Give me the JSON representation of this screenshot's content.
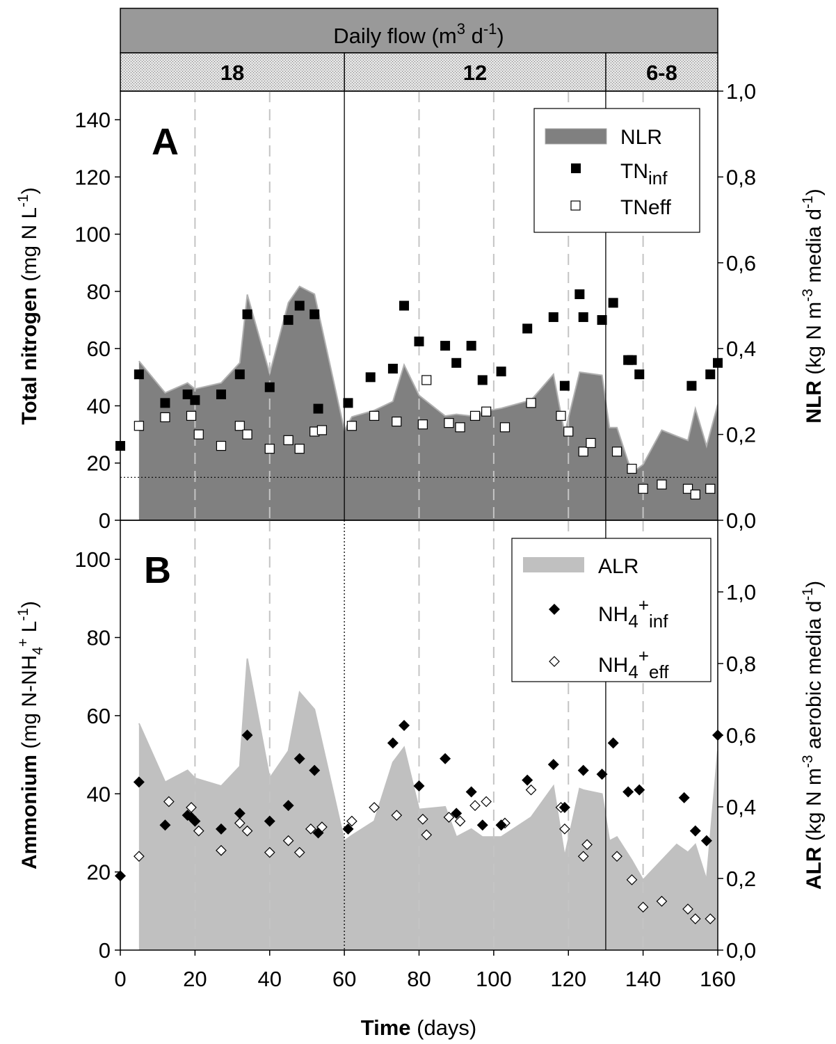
{
  "flow_header": {
    "title_main": "Daily flow (m",
    "title_sup1": "3",
    "title_mid": " d",
    "title_sup2": "-1",
    "title_end": ")",
    "periods": [
      {
        "label": "18",
        "x_start": 0,
        "x_end": 60
      },
      {
        "label": "12",
        "x_start": 60,
        "x_end": 130
      },
      {
        "label": "6-8",
        "x_start": 130,
        "x_end": 160
      }
    ],
    "header_bg": "#999999",
    "band_bg": "#dcdcdc"
  },
  "x_axis": {
    "label_bold": "Time",
    "label_rest": " (days)",
    "range": [
      0,
      160
    ],
    "ticks": [
      "0",
      "20",
      "40",
      "60",
      "80",
      "100",
      "120",
      "140",
      "160"
    ]
  },
  "chart_data": [
    {
      "type": "area",
      "panel_label": "A",
      "ylabel_left_bold": "Total nitrogen",
      "ylabel_left_rest": " (mg N L",
      "ylabel_left_sup": "-1",
      "ylabel_left_end": ")",
      "ylabel_right_bold": "NLR",
      "ylabel_right_rest": " (kg N m",
      "ylabel_right_sup": "-3",
      "ylabel_right_mid": " media d",
      "ylabel_right_sup2": "-1",
      "ylabel_right_end": ")",
      "ylim_left": [
        0,
        150
      ],
      "left_ticks": [
        "0",
        "20",
        "40",
        "60",
        "80",
        "100",
        "120",
        "140"
      ],
      "ylim_right": [
        0,
        1.0
      ],
      "right_ticks": [
        "0,0",
        "0,2",
        "0,4",
        "0,6",
        "0,8",
        "1,0"
      ],
      "reference_line_y": 15,
      "legend": {
        "position": "top-right",
        "area": "NLR",
        "inf_base": "TN",
        "inf_sub": "inf",
        "eff": "TNeff"
      },
      "area_color": "#808080",
      "area_edge": "#b0b0b0",
      "area_series": {
        "name": "NLR",
        "x": [
          5,
          12,
          18,
          20,
          27,
          32,
          34,
          40,
          45,
          48,
          52,
          60,
          62,
          68,
          73,
          76,
          80,
          87,
          90,
          94,
          97,
          102,
          110,
          116,
          119,
          123,
          124,
          129,
          131,
          133,
          137,
          140,
          145,
          149,
          152,
          154,
          157,
          160
        ],
        "y": [
          0.371,
          0.297,
          0.32,
          0.306,
          0.32,
          0.367,
          0.526,
          0.342,
          0.507,
          0.545,
          0.527,
          0.21,
          0.241,
          0.256,
          0.277,
          0.362,
          0.291,
          0.243,
          0.247,
          0.243,
          0.253,
          0.261,
          0.28,
          0.34,
          0.202,
          0.345,
          0.344,
          0.338,
          0.216,
          0.216,
          0.11,
          0.13,
          0.21,
          0.196,
          0.186,
          0.26,
          0.173,
          0.27
        ]
      },
      "inf_series": {
        "name": "TNinf",
        "x": [
          0,
          5,
          12,
          18,
          20,
          27,
          32,
          34,
          40,
          45,
          48,
          52,
          53,
          61,
          67,
          73,
          76,
          80,
          87,
          90,
          94,
          97,
          102,
          109,
          116,
          119,
          123,
          124,
          129,
          132,
          136,
          137,
          139,
          153,
          158,
          160
        ],
        "y": [
          26,
          51,
          41,
          44,
          42,
          44,
          51,
          72,
          46.5,
          70,
          75,
          72,
          39,
          41,
          50,
          53,
          75,
          62.5,
          61,
          55,
          61,
          49,
          52,
          67,
          71,
          47,
          79,
          71,
          70,
          76,
          56,
          56,
          51,
          47,
          51,
          55
        ]
      },
      "eff_series": {
        "name": "TNeff",
        "x": [
          5,
          12,
          19,
          21,
          27,
          32,
          34,
          40,
          45,
          48,
          52,
          54,
          62,
          68,
          74,
          81,
          82,
          88,
          91,
          95,
          98,
          103,
          110,
          118,
          120,
          124,
          126,
          133,
          137,
          140,
          145,
          152,
          154,
          158
        ],
        "y": [
          33,
          36,
          36.5,
          30,
          26,
          33,
          30,
          25,
          28,
          25,
          31,
          31.5,
          33,
          36.5,
          34.5,
          33.5,
          49,
          34,
          32.5,
          36.5,
          38,
          32.5,
          41,
          36.5,
          31,
          24,
          27,
          24,
          18,
          11,
          12.5,
          11,
          9,
          11
        ]
      },
      "divider_days": [
        60,
        130
      ],
      "dashed_gridline_days": [
        20,
        40,
        80,
        100,
        120,
        140
      ]
    },
    {
      "type": "area",
      "panel_label": "B",
      "ylabel_left_bold": "Ammonium",
      "ylabel_left_rest": " (mg N-NH",
      "ylabel_left_sub": "4",
      "ylabel_left_sup": "+",
      "ylabel_left_mid": " L",
      "ylabel_left_sup2": "-1",
      "ylabel_left_end": ")",
      "ylabel_right_bold": "ALR",
      "ylabel_right_rest": " (kg N m",
      "ylabel_right_sup": "-3",
      "ylabel_right_mid": " aerobic media d",
      "ylabel_right_sup2": "-1",
      "ylabel_right_end": ")",
      "ylim_left": [
        0,
        110
      ],
      "left_ticks": [
        "0",
        "20",
        "40",
        "60",
        "80",
        "100"
      ],
      "ylim_right": [
        0,
        1.2
      ],
      "right_ticks": [
        "0,0",
        "0,2",
        "0,4",
        "0,6",
        "0,8",
        "1,0"
      ],
      "legend": {
        "position": "top-right",
        "area": "ALR",
        "inf_base": "NH",
        "inf_sub1": "4",
        "inf_sup": "+",
        "inf_sub2": "inf",
        "eff_base": "NH",
        "eff_sub1": "4",
        "eff_sup": "+",
        "eff_sub2": "eff"
      },
      "area_color": "#c0c0c0",
      "area_edge": "#c0c0c0",
      "area_series": {
        "name": "ALR",
        "x": [
          5,
          12,
          18,
          20,
          27,
          32,
          34,
          40,
          45,
          48,
          52,
          60,
          62,
          68,
          73,
          76,
          80,
          87,
          90,
          94,
          97,
          102,
          110,
          116,
          119,
          123,
          124,
          129,
          131,
          133,
          137,
          140,
          145,
          149,
          152,
          154,
          157,
          160
        ],
        "y": [
          0.633,
          0.469,
          0.502,
          0.48,
          0.458,
          0.513,
          0.814,
          0.48,
          0.556,
          0.72,
          0.672,
          0.305,
          0.32,
          0.36,
          0.524,
          0.566,
          0.393,
          0.4,
          0.316,
          0.338,
          0.316,
          0.316,
          0.371,
          0.458,
          0.262,
          0.451,
          0.447,
          0.436,
          0.305,
          0.316,
          0.251,
          0.196,
          0.251,
          0.295,
          0.273,
          0.295,
          0.196,
          0.556
        ]
      },
      "inf_series": {
        "name": "NH4+inf",
        "x": [
          0,
          5,
          12,
          18,
          19,
          20,
          27,
          32,
          34,
          40,
          45,
          48,
          52,
          53,
          61,
          73,
          76,
          80,
          87,
          90,
          94,
          97,
          102,
          109,
          116,
          119,
          124,
          129,
          132,
          136,
          139,
          151,
          154,
          157,
          160
        ],
        "y": [
          19,
          43,
          32,
          34.5,
          34,
          33,
          31,
          35,
          55,
          33,
          37,
          49,
          46,
          30,
          31,
          53,
          57.5,
          42,
          49,
          35,
          40.5,
          32,
          32,
          43.5,
          47.5,
          36.5,
          46,
          45,
          53,
          40.5,
          41,
          39,
          30.5,
          28,
          55
        ]
      },
      "eff_series": {
        "name": "NH4+eff",
        "x": [
          5,
          13,
          19,
          21,
          27,
          32,
          34,
          40,
          45,
          48,
          51,
          54,
          62,
          68,
          74,
          81,
          82,
          88,
          91,
          95,
          98,
          102,
          103,
          110,
          118,
          119,
          124,
          125,
          133,
          137,
          140,
          145,
          152,
          154,
          158
        ],
        "y": [
          24,
          38,
          36.5,
          30.5,
          25.5,
          32.5,
          30.5,
          25,
          28,
          25,
          31,
          31.5,
          33,
          36.5,
          34.5,
          33.5,
          29.5,
          34,
          33,
          37,
          38,
          32,
          32.5,
          41,
          36.5,
          31,
          24,
          27,
          24,
          18,
          11,
          12.5,
          10.5,
          8,
          8
        ]
      },
      "divider_solid_days": [
        130
      ],
      "divider_dotted_days": [
        60
      ],
      "dashed_gridline_days": [
        20,
        40,
        80,
        100,
        120,
        140
      ]
    }
  ]
}
